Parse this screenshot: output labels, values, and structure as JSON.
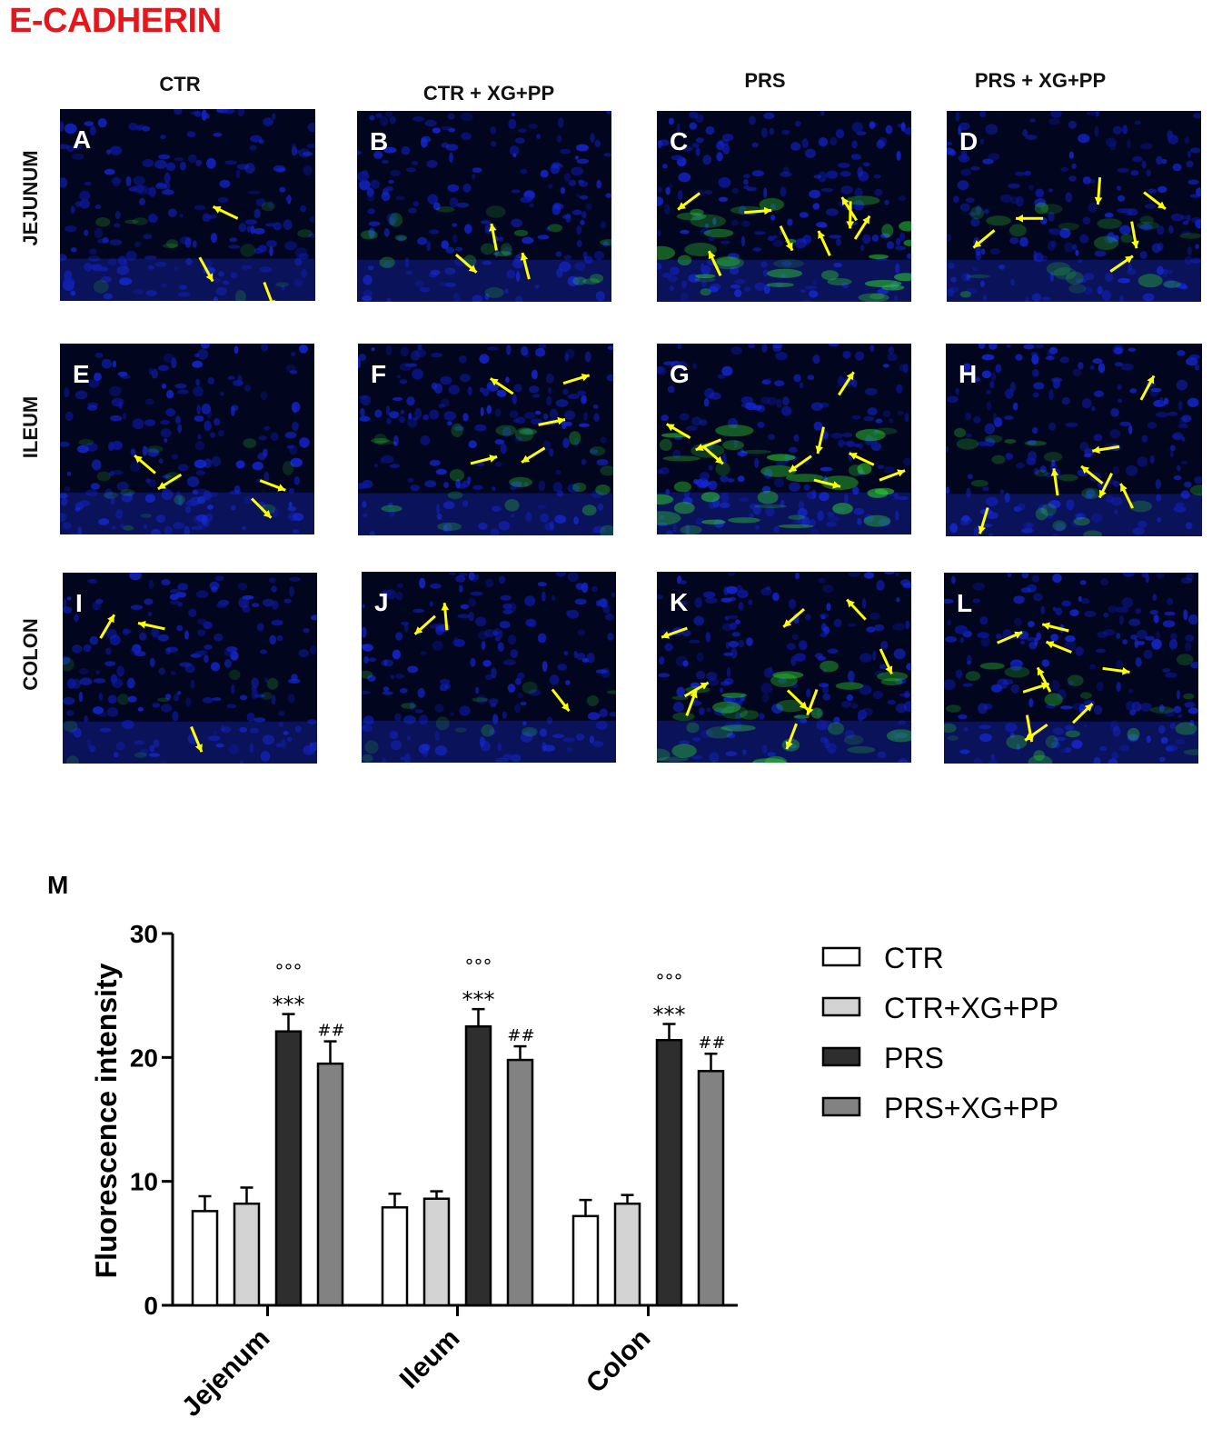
{
  "figure": {
    "title": "E-CADHERIN",
    "columns": [
      "CTR",
      "CTR + XG+PP",
      "PRS",
      "PRS + XG+PP"
    ],
    "rows": [
      "JEJUNUM",
      "ILEUM",
      "COLON"
    ],
    "panel_letters": [
      "A",
      "B",
      "C",
      "D",
      "E",
      "F",
      "G",
      "H",
      "I",
      "J",
      "K",
      "L"
    ],
    "panel_chart_letter": "M",
    "colors": {
      "title": "#e8161b",
      "nuclei_stain": "#1020c0",
      "ecadherin_stain": "#30d030",
      "arrows": "#ffff00"
    }
  },
  "chart_data": {
    "type": "bar",
    "ylabel": "Fluorescence intensity",
    "xlabel": "",
    "ylim": [
      0,
      30
    ],
    "yticks": [
      0,
      10,
      20,
      30
    ],
    "categories": [
      "Jejenum",
      "Ileum",
      "Colon"
    ],
    "series": [
      {
        "name": "CTR",
        "color": "#ffffff",
        "values": [
          7.6,
          7.9,
          7.2
        ],
        "errors": [
          1.2,
          1.1,
          1.3
        ],
        "annotations": [
          "",
          "",
          ""
        ],
        "annotations2": [
          "",
          "",
          ""
        ]
      },
      {
        "name": "CTR+XG+PP",
        "color": "#d3d3d3",
        "values": [
          8.2,
          8.6,
          8.2
        ],
        "errors": [
          1.3,
          0.6,
          0.7
        ],
        "annotations": [
          "",
          "",
          ""
        ],
        "annotations2": [
          "",
          "",
          ""
        ]
      },
      {
        "name": "PRS",
        "color": "#2e2e2e",
        "values": [
          22.1,
          22.5,
          21.4
        ],
        "errors": [
          1.4,
          1.4,
          1.3
        ],
        "annotations": [
          "***",
          "***",
          "***"
        ],
        "annotations2": [
          "°°°",
          "°°°",
          "°°°"
        ]
      },
      {
        "name": "PRS+XG+PP",
        "color": "#828282",
        "values": [
          19.5,
          19.8,
          18.9
        ],
        "errors": [
          1.8,
          1.1,
          1.4
        ],
        "annotations": [
          "##",
          "##",
          "##"
        ],
        "annotations2": [
          "",
          "",
          ""
        ]
      }
    ],
    "legend_position": "right",
    "grid": false
  }
}
